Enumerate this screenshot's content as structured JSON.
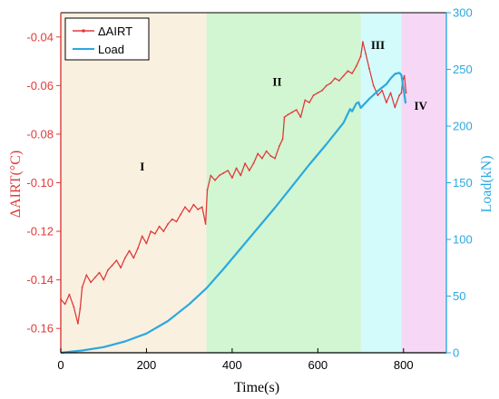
{
  "chart_data": {
    "type": "line",
    "x_label": "Time(s)",
    "y_left_label": "ΔAIRT(°C)",
    "y_right_label": "Load(kN)",
    "xlim": [
      0,
      900
    ],
    "x_ticks": [
      0,
      200,
      400,
      600,
      800
    ],
    "y_left_lim": [
      -0.17,
      -0.03
    ],
    "y_left_ticks": [
      -0.16,
      -0.14,
      -0.12,
      -0.1,
      -0.08,
      -0.06,
      -0.04
    ],
    "y_right_lim": [
      0,
      300
    ],
    "y_right_ticks": [
      0,
      50,
      100,
      150,
      200,
      250,
      300
    ],
    "grid": false,
    "legend_position": "top-left",
    "colors": {
      "airt": "#e03a3a",
      "load": "#29a9e0"
    },
    "regions": [
      {
        "label": "I",
        "x_start": 0,
        "x_end": 340,
        "color": "#faf0e0",
        "label_x": 190,
        "label_y": -0.095
      },
      {
        "label": "II",
        "x_start": 340,
        "x_end": 700,
        "color": "#d2f5d2",
        "label_x": 505,
        "label_y": -0.06
      },
      {
        "label": "III",
        "x_start": 700,
        "x_end": 795,
        "color": "#d4fbfb",
        "label_x": 740,
        "label_y": -0.045
      },
      {
        "label": "IV",
        "x_start": 795,
        "x_end": 900,
        "color": "#f6d8f6",
        "label_x": 840,
        "label_y": -0.07
      }
    ],
    "series": [
      {
        "name": "ΔAIRT",
        "axis": "left",
        "points": [
          [
            0,
            -0.148
          ],
          [
            10,
            -0.15
          ],
          [
            20,
            -0.146
          ],
          [
            30,
            -0.151
          ],
          [
            40,
            -0.158
          ],
          [
            45,
            -0.152
          ],
          [
            50,
            -0.143
          ],
          [
            60,
            -0.138
          ],
          [
            70,
            -0.141
          ],
          [
            80,
            -0.139
          ],
          [
            90,
            -0.137
          ],
          [
            100,
            -0.14
          ],
          [
            110,
            -0.136
          ],
          [
            120,
            -0.134
          ],
          [
            130,
            -0.132
          ],
          [
            140,
            -0.135
          ],
          [
            150,
            -0.131
          ],
          [
            160,
            -0.128
          ],
          [
            170,
            -0.131
          ],
          [
            180,
            -0.127
          ],
          [
            190,
            -0.122
          ],
          [
            200,
            -0.125
          ],
          [
            210,
            -0.12
          ],
          [
            220,
            -0.121
          ],
          [
            230,
            -0.118
          ],
          [
            240,
            -0.12
          ],
          [
            250,
            -0.117
          ],
          [
            260,
            -0.115
          ],
          [
            270,
            -0.116
          ],
          [
            280,
            -0.113
          ],
          [
            290,
            -0.11
          ],
          [
            300,
            -0.112
          ],
          [
            310,
            -0.109
          ],
          [
            320,
            -0.111
          ],
          [
            330,
            -0.11
          ],
          [
            338,
            -0.117
          ],
          [
            342,
            -0.103
          ],
          [
            350,
            -0.097
          ],
          [
            360,
            -0.099
          ],
          [
            370,
            -0.097
          ],
          [
            380,
            -0.096
          ],
          [
            390,
            -0.095
          ],
          [
            400,
            -0.098
          ],
          [
            410,
            -0.094
          ],
          [
            420,
            -0.097
          ],
          [
            430,
            -0.092
          ],
          [
            440,
            -0.095
          ],
          [
            450,
            -0.092
          ],
          [
            460,
            -0.088
          ],
          [
            470,
            -0.09
          ],
          [
            480,
            -0.087
          ],
          [
            490,
            -0.089
          ],
          [
            500,
            -0.09
          ],
          [
            510,
            -0.085
          ],
          [
            518,
            -0.082
          ],
          [
            522,
            -0.073
          ],
          [
            530,
            -0.072
          ],
          [
            540,
            -0.071
          ],
          [
            550,
            -0.07
          ],
          [
            560,
            -0.073
          ],
          [
            570,
            -0.066
          ],
          [
            580,
            -0.067
          ],
          [
            590,
            -0.064
          ],
          [
            600,
            -0.063
          ],
          [
            610,
            -0.062
          ],
          [
            620,
            -0.06
          ],
          [
            630,
            -0.059
          ],
          [
            640,
            -0.057
          ],
          [
            650,
            -0.058
          ],
          [
            660,
            -0.056
          ],
          [
            670,
            -0.054
          ],
          [
            680,
            -0.055
          ],
          [
            690,
            -0.052
          ],
          [
            700,
            -0.048
          ],
          [
            705,
            -0.042
          ],
          [
            712,
            -0.047
          ],
          [
            720,
            -0.053
          ],
          [
            730,
            -0.06
          ],
          [
            740,
            -0.064
          ],
          [
            750,
            -0.062
          ],
          [
            760,
            -0.067
          ],
          [
            770,
            -0.063
          ],
          [
            780,
            -0.069
          ],
          [
            790,
            -0.064
          ],
          [
            795,
            -0.063
          ],
          [
            798,
            -0.058
          ],
          [
            802,
            -0.056
          ],
          [
            806,
            -0.063
          ]
        ]
      },
      {
        "name": "Load",
        "axis": "right",
        "points": [
          [
            0,
            0
          ],
          [
            50,
            2
          ],
          [
            100,
            5
          ],
          [
            150,
            10
          ],
          [
            200,
            17
          ],
          [
            250,
            28
          ],
          [
            300,
            43
          ],
          [
            340,
            57
          ],
          [
            380,
            74
          ],
          [
            420,
            92
          ],
          [
            460,
            110
          ],
          [
            500,
            128
          ],
          [
            540,
            147
          ],
          [
            580,
            166
          ],
          [
            620,
            184
          ],
          [
            660,
            203
          ],
          [
            675,
            215
          ],
          [
            680,
            213
          ],
          [
            690,
            220
          ],
          [
            695,
            221
          ],
          [
            700,
            216
          ],
          [
            710,
            220
          ],
          [
            720,
            224
          ],
          [
            740,
            231
          ],
          [
            760,
            237
          ],
          [
            770,
            242
          ],
          [
            780,
            246
          ],
          [
            790,
            247
          ],
          [
            795,
            245
          ],
          [
            800,
            233
          ],
          [
            805,
            220
          ]
        ]
      }
    ]
  }
}
